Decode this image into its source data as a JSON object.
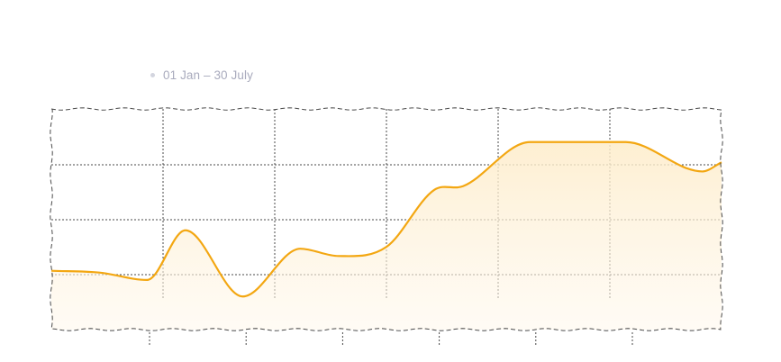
{
  "legend": {
    "label": "01 Jan – 30 July"
  },
  "colors": {
    "line": "#f3a712",
    "fill": "#fdf1dc",
    "grid": "#4a4a4a",
    "legend_dot": "#d3d5df",
    "legend_text": "#a9abbd"
  },
  "chart_data": {
    "type": "area",
    "title": "",
    "xlabel": "",
    "ylabel": "",
    "x": [
      0,
      0.5,
      1,
      1.4,
      2,
      2.6,
      3,
      3.5,
      4,
      4.3,
      5,
      6,
      6.8,
      7
    ],
    "values": [
      16,
      15.5,
      13.5,
      27,
      9,
      22,
      20,
      22.5,
      38,
      39,
      51,
      51,
      43,
      45.5
    ],
    "xlim": [
      0,
      7
    ],
    "ylim": [
      0,
      60
    ],
    "grid": true,
    "gridlines": {
      "vertical": 5,
      "horizontal": 3
    },
    "bottom_ticks": 6,
    "legend_position": "top-left"
  }
}
